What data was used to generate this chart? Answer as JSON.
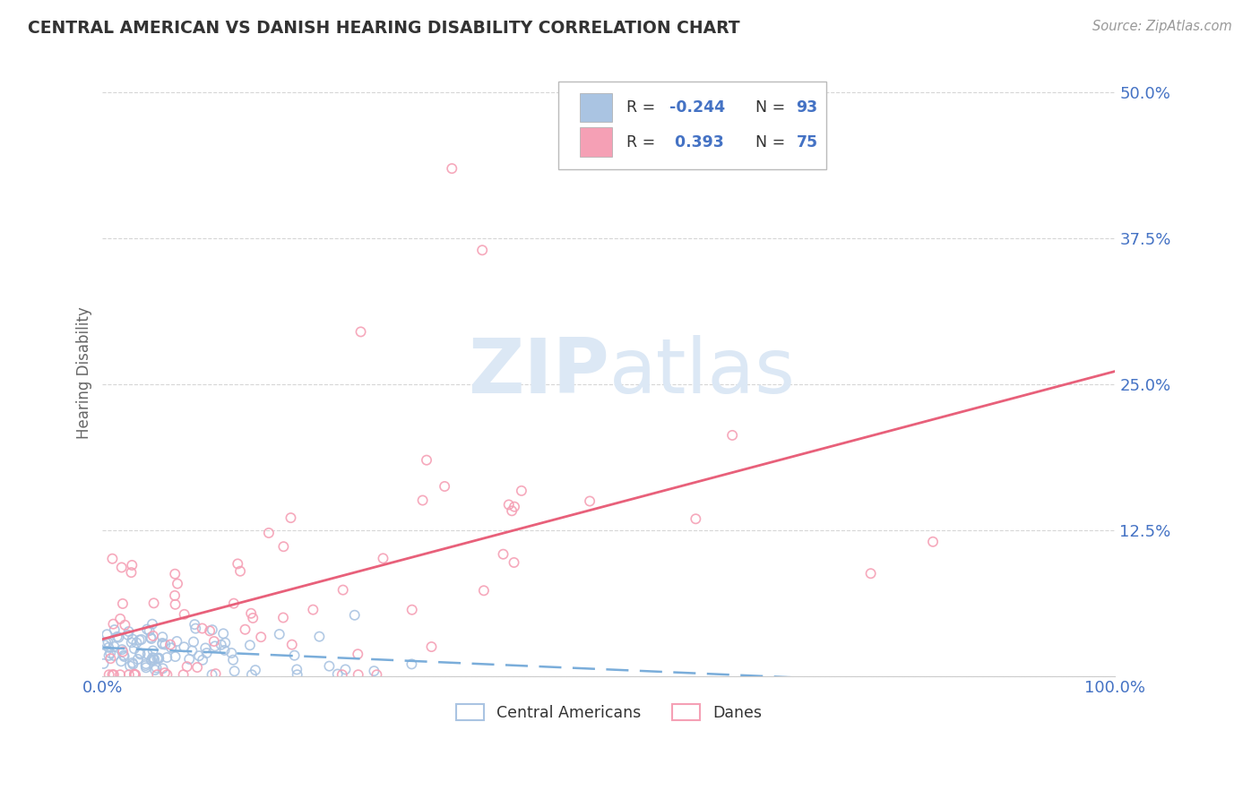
{
  "title": "CENTRAL AMERICAN VS DANISH HEARING DISABILITY CORRELATION CHART",
  "source": "Source: ZipAtlas.com",
  "ylabel": "Hearing Disability",
  "xlim": [
    0.0,
    1.0
  ],
  "ylim": [
    0.0,
    0.52
  ],
  "yticks": [
    0.0,
    0.125,
    0.25,
    0.375,
    0.5
  ],
  "ytick_labels": [
    "",
    "12.5%",
    "25.0%",
    "37.5%",
    "50.0%"
  ],
  "ca_R": -0.244,
  "ca_N": 93,
  "da_R": 0.393,
  "da_N": 75,
  "ca_color": "#aac4e2",
  "da_color": "#f5a0b5",
  "ca_line_color": "#7aadda",
  "da_line_color": "#e8607a",
  "background_color": "#ffffff",
  "grid_color": "#cccccc",
  "title_color": "#333333",
  "axis_label_color": "#666666",
  "r_value_color": "#4472c4",
  "watermark_color": "#dce8f5"
}
